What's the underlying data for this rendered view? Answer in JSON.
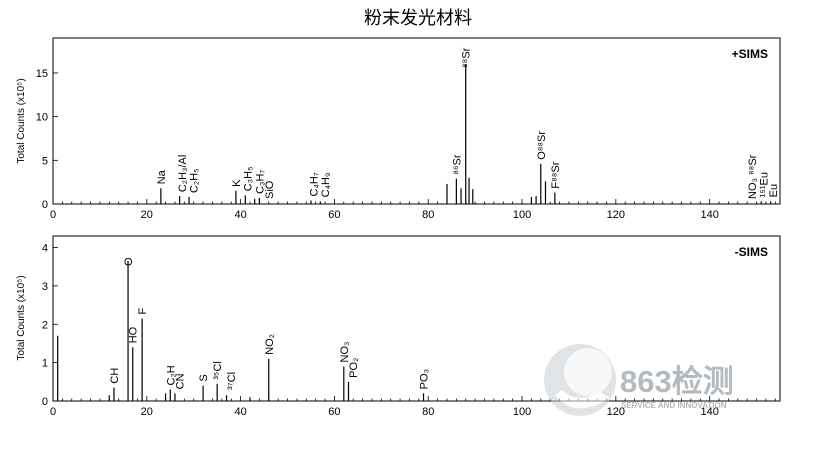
{
  "chart_data": {
    "title": "粉末发光材料",
    "type": "bar",
    "panels": [
      {
        "id": "positive",
        "tag": "+SIMS",
        "ylabel": "Total Counts (x10⁵)",
        "xlim": [
          0,
          155
        ],
        "ylim": [
          0,
          19
        ],
        "xticks": [
          0,
          20,
          40,
          60,
          80,
          100,
          120,
          140
        ],
        "yticks": [
          0,
          5,
          10,
          15
        ],
        "peaks": [
          {
            "x": 23,
            "y": 1.8
          },
          {
            "x": 27,
            "y": 0.9
          },
          {
            "x": 29,
            "y": 0.8
          },
          {
            "x": 39,
            "y": 1.5
          },
          {
            "x": 41,
            "y": 1.0
          },
          {
            "x": 43,
            "y": 0.6
          },
          {
            "x": 44,
            "y": 0.7
          },
          {
            "x": 55,
            "y": 0.4
          },
          {
            "x": 57,
            "y": 0.3
          },
          {
            "x": 84,
            "y": 2.3
          },
          {
            "x": 86,
            "y": 2.9
          },
          {
            "x": 87,
            "y": 1.8
          },
          {
            "x": 88,
            "y": 16.0
          },
          {
            "x": 88.7,
            "y": 3.0
          },
          {
            "x": 89.5,
            "y": 1.7
          },
          {
            "x": 102,
            "y": 0.8
          },
          {
            "x": 103,
            "y": 0.9
          },
          {
            "x": 104,
            "y": 4.6
          },
          {
            "x": 105,
            "y": 2.6
          },
          {
            "x": 107,
            "y": 1.3
          },
          {
            "x": 151,
            "y": 0.3
          },
          {
            "x": 153,
            "y": 0.3
          }
        ],
        "labels": [
          {
            "text": "Na",
            "x": 23
          },
          {
            "text": "C₂H₃/Al",
            "x": 27.5
          },
          {
            "text": "C₂H₅",
            "x": 30
          },
          {
            "text": "K",
            "x": 39
          },
          {
            "text": "C₃H₅",
            "x": 41.5
          },
          {
            "text": "C₃H₇",
            "x": 44
          },
          {
            "text": "SiO",
            "x": 46
          },
          {
            "text": "C₄H₇",
            "x": 55.5
          },
          {
            "text": "C₄H₉",
            "x": 58
          },
          {
            "text": "⁸⁶Sr",
            "x": 86
          },
          {
            "text": "⁸⁸Sr",
            "x": 88
          },
          {
            "text": "O⁸⁸Sr",
            "x": 104
          },
          {
            "text": "F⁸⁸Sr",
            "x": 107
          },
          {
            "text": "NO₃ ⁸⁸Sr",
            "x": 149
          },
          {
            "text": "¹⁵¹Eu",
            "x": 151.5
          },
          {
            "text": "Eu",
            "x": 153.5
          }
        ]
      },
      {
        "id": "negative",
        "tag": "-SIMS",
        "ylabel": "Total Counts (x10⁵)",
        "xlim": [
          0,
          155
        ],
        "ylim": [
          0,
          4.3
        ],
        "xticks": [
          0,
          20,
          40,
          60,
          80,
          100,
          120,
          140
        ],
        "yticks": [
          0,
          1,
          2,
          3,
          4
        ],
        "peaks": [
          {
            "x": 1,
            "y": 1.7
          },
          {
            "x": 12,
            "y": 0.15
          },
          {
            "x": 13,
            "y": 0.35
          },
          {
            "x": 16,
            "y": 3.65
          },
          {
            "x": 17,
            "y": 1.4
          },
          {
            "x": 19,
            "y": 2.15
          },
          {
            "x": 24,
            "y": 0.2
          },
          {
            "x": 25,
            "y": 0.3
          },
          {
            "x": 26,
            "y": 0.2
          },
          {
            "x": 32,
            "y": 0.4
          },
          {
            "x": 35,
            "y": 0.45
          },
          {
            "x": 37,
            "y": 0.15
          },
          {
            "x": 42,
            "y": 0.1
          },
          {
            "x": 46,
            "y": 1.1
          },
          {
            "x": 62,
            "y": 0.9
          },
          {
            "x": 63,
            "y": 0.5
          },
          {
            "x": 79,
            "y": 0.2
          }
        ],
        "labels": [
          {
            "text": "CH",
            "x": 13
          },
          {
            "text": "O",
            "x": 16
          },
          {
            "text": "HO",
            "x": 17
          },
          {
            "text": "F",
            "x": 19
          },
          {
            "text": "C₂H",
            "x": 25
          },
          {
            "text": "CN",
            "x": 27
          },
          {
            "text": "S",
            "x": 32
          },
          {
            "text": "³⁵Cl",
            "x": 35
          },
          {
            "text": "³⁷Cl",
            "x": 38
          },
          {
            "text": "NO₂",
            "x": 46
          },
          {
            "text": "NO₃",
            "x": 62
          },
          {
            "text": "PO₂",
            "x": 64
          },
          {
            "text": "PO₃",
            "x": 79
          }
        ]
      }
    ]
  },
  "watermark": {
    "main": "863检测",
    "sub": "SERVICE AND INNOVATION"
  }
}
